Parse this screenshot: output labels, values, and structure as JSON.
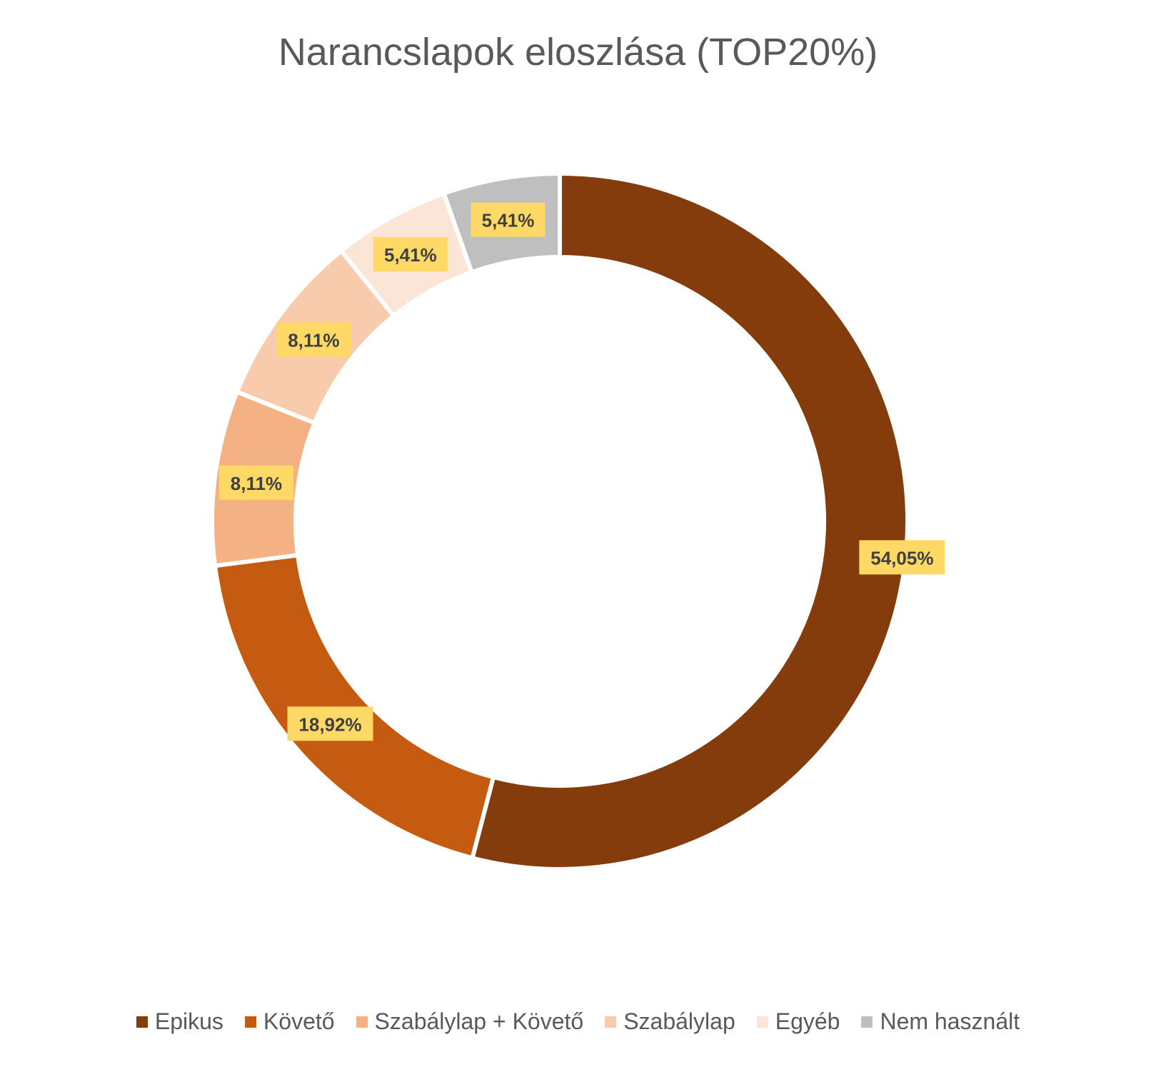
{
  "chart_data": {
    "type": "pie",
    "title": "Narancslapok eloszlása (TOP20%)",
    "categories": [
      "Epikus",
      "Követő",
      "Szabálylap + Követő",
      "Szabálylap",
      "Egyéb",
      "Nem használt"
    ],
    "values": [
      54.05,
      18.92,
      8.11,
      8.11,
      5.41,
      5.41
    ],
    "labels": [
      "54,05%",
      "18,92%",
      "8,11%",
      "8,11%",
      "5,41%",
      "5,41%"
    ],
    "colors": [
      "#843C0C",
      "#C55A11",
      "#F4B183",
      "#F8CBAD",
      "#FBE5D6",
      "#BFBFBF"
    ],
    "label_bg": "#FFD966",
    "legend": "bottom",
    "donut": true
  }
}
